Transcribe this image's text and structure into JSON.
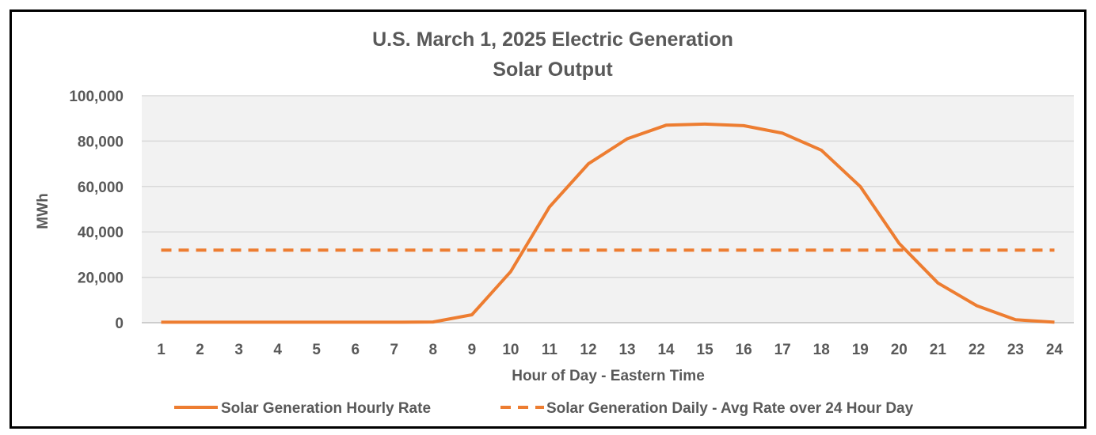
{
  "chart_data": {
    "type": "line",
    "title": "U.S. March 1, 2025  Electric Generation",
    "subtitle": "Solar Output",
    "xlabel": "Hour of Day  - Eastern Time",
    "ylabel": "MWh",
    "x": [
      1,
      2,
      3,
      4,
      5,
      6,
      7,
      8,
      9,
      10,
      11,
      12,
      13,
      14,
      15,
      16,
      17,
      18,
      19,
      20,
      21,
      22,
      23,
      24
    ],
    "x_tick_labels": [
      "1",
      "2",
      "3",
      "4",
      "5",
      "6",
      "7",
      "8",
      "9",
      "10",
      "11",
      "12",
      "13",
      "14",
      "15",
      "16",
      "17",
      "18",
      "19",
      "20",
      "21",
      "22",
      "23",
      "24"
    ],
    "y_tick_labels": [
      "0",
      "20,000",
      "40,000",
      "60,000",
      "80,000",
      "100,000"
    ],
    "y_ticks": [
      0,
      20000,
      40000,
      60000,
      80000,
      100000
    ],
    "ylim": [
      0,
      100000
    ],
    "grid": true,
    "legend_position": "bottom",
    "series": [
      {
        "name": "Solar Generation Hourly Rate",
        "style": "solid",
        "color": "#ED7D31",
        "values": [
          200,
          200,
          200,
          200,
          200,
          200,
          200,
          300,
          3500,
          22500,
          51000,
          70000,
          81000,
          87000,
          87500,
          86800,
          83500,
          76000,
          60000,
          35000,
          17500,
          7500,
          1300,
          200
        ]
      },
      {
        "name": "Solar Generation Daily - Avg Rate over 24 Hour Day",
        "style": "dashed",
        "color": "#ED7D31",
        "values": [
          32000,
          32000,
          32000,
          32000,
          32000,
          32000,
          32000,
          32000,
          32000,
          32000,
          32000,
          32000,
          32000,
          32000,
          32000,
          32000,
          32000,
          32000,
          32000,
          32000,
          32000,
          32000,
          32000,
          32000
        ]
      }
    ]
  }
}
